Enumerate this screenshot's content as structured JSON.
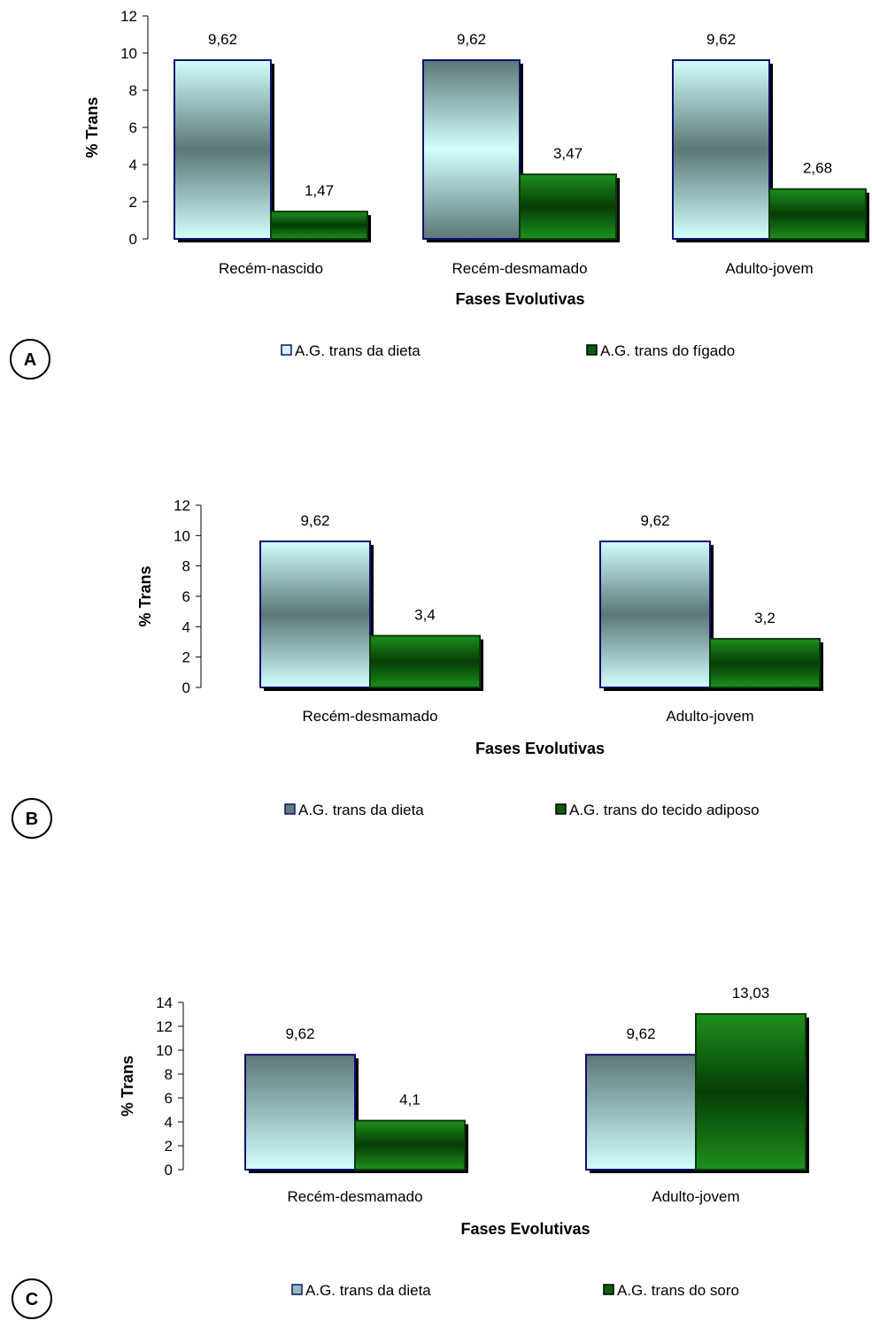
{
  "chart_data": [
    {
      "type": "bar",
      "panel": "A",
      "categories": [
        "Recém-nascido",
        "Recém-desmamado",
        "Adulto-jovem"
      ],
      "series": [
        {
          "name": "A.G. trans da dieta",
          "values": [
            9.62,
            9.62,
            9.62
          ],
          "labels": [
            "9,62",
            "9,62",
            "9,62"
          ]
        },
        {
          "name": "A.G. trans do fígado",
          "values": [
            1.47,
            3.47,
            2.68
          ],
          "labels": [
            "1,47",
            "3,47",
            "2,68"
          ]
        }
      ],
      "xlabel": "Fases Evolutivas",
      "ylabel": "% Trans",
      "ylim": [
        0,
        12
      ],
      "yticks": [
        0,
        2,
        4,
        6,
        8,
        10,
        12
      ],
      "legend": "bottom",
      "grid": false,
      "colors": {
        "series0": "#cdfdfd",
        "series0_dark": "#5e7a7a",
        "series1": "#0b5c0b",
        "series1_light": "#1a9a1a"
      }
    },
    {
      "type": "bar",
      "panel": "B",
      "categories": [
        "Recém-desmamado",
        "Adulto-jovem"
      ],
      "series": [
        {
          "name": "A.G. trans da dieta",
          "values": [
            9.62,
            9.62
          ],
          "labels": [
            "9,62",
            "9,62"
          ]
        },
        {
          "name": "A.G. trans do tecido adiposo",
          "values": [
            3.4,
            3.2
          ],
          "labels": [
            "3,4",
            "3,2"
          ]
        }
      ],
      "xlabel": "Fases Evolutivas",
      "ylabel": "% Trans",
      "ylim": [
        0,
        12
      ],
      "yticks": [
        0,
        2,
        4,
        6,
        8,
        10,
        12
      ],
      "legend": "bottom",
      "grid": false,
      "colors": {
        "series0": "#cdfdfd",
        "series0_dark": "#5e7a7a",
        "series1": "#0b5c0b",
        "series1_light": "#1a9a1a"
      }
    },
    {
      "type": "bar",
      "panel": "C",
      "categories": [
        "Recém-desmamado",
        "Adulto-jovem"
      ],
      "series": [
        {
          "name": "A.G. trans da dieta",
          "values": [
            9.62,
            9.62
          ],
          "labels": [
            "9,62",
            "9,62"
          ]
        },
        {
          "name": "A.G. trans do soro",
          "values": [
            4.1,
            13.03
          ],
          "labels": [
            "4,1",
            "13,03"
          ]
        }
      ],
      "xlabel": "Fases Evolutivas",
      "ylabel": "% Trans",
      "ylim": [
        0,
        14
      ],
      "yticks": [
        0,
        2,
        4,
        6,
        8,
        10,
        12,
        14
      ],
      "legend": "bottom",
      "grid": false,
      "colors": {
        "series0": "#cdfdfd",
        "series0_dark": "#5e7a7a",
        "series1": "#0b5c0b",
        "series1_light": "#1a9a1a"
      }
    }
  ]
}
